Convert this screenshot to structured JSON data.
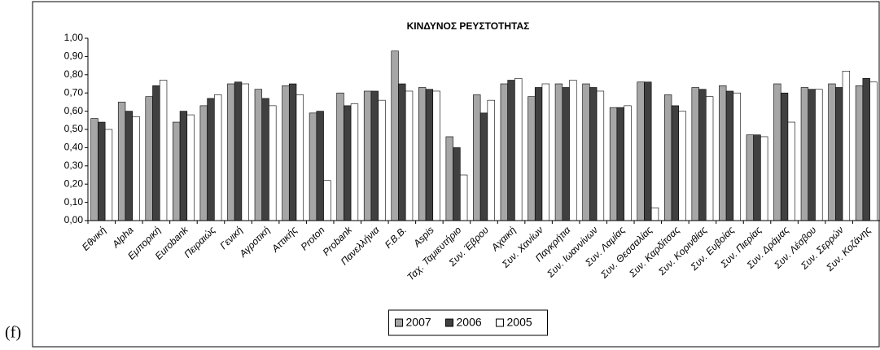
{
  "panel_label": "(f)",
  "chart_data": {
    "type": "bar",
    "title": "ΚΙΝΔΥΝΟΣ ΡΕΥΣΤΟΤΗΤΑΣ",
    "categories": [
      "Εθνική",
      "Alpha",
      "Εμπορική",
      "Eurobank",
      "Πειραιώς",
      "Γενική",
      "Αγροτική",
      "Αττικής",
      "Proton",
      "Probank",
      "Πανελλήνια",
      "F.B.B.",
      "Aspis",
      "Ταχ. Ταμιευτήριο",
      "Συν. Έβρου",
      "Αχαική",
      "Συν. Χανίων",
      "Παγκρήτια",
      "Συν. Ιωαννίνων",
      "Συν. Λαμίας",
      "Συν. Θεσσαλίας",
      "Συν. Καρδίτσας",
      "Συν. Κορινθίας",
      "Συν. Ευβοίας",
      "Συν. Πιερίας",
      "Συν. Δράμας",
      "Συν. Λέσβου",
      "Συν. Σερρών",
      "Συν. Κοζάνης"
    ],
    "series": [
      {
        "name": "2007",
        "color": "#a6a6a6",
        "values": [
          0.56,
          0.65,
          0.68,
          0.54,
          0.63,
          0.75,
          0.72,
          0.74,
          0.59,
          0.7,
          0.71,
          0.93,
          0.73,
          0.46,
          0.69,
          0.75,
          0.68,
          0.75,
          0.75,
          0.62,
          0.76,
          0.69,
          0.73,
          0.74,
          0.47,
          0.75,
          0.73,
          0.75,
          0.74
        ]
      },
      {
        "name": "2006",
        "color": "#404040",
        "values": [
          0.54,
          0.6,
          0.74,
          0.6,
          0.67,
          0.76,
          0.67,
          0.75,
          0.6,
          0.63,
          0.71,
          0.75,
          0.72,
          0.4,
          0.59,
          0.77,
          0.73,
          0.73,
          0.73,
          0.62,
          0.76,
          0.63,
          0.72,
          0.71,
          0.47,
          0.7,
          0.72,
          0.73,
          0.78
        ]
      },
      {
        "name": "2005",
        "color": "#ffffff",
        "values": [
          0.5,
          0.57,
          0.77,
          0.58,
          0.69,
          0.75,
          0.63,
          0.69,
          0.22,
          0.64,
          0.66,
          0.71,
          0.71,
          0.25,
          0.66,
          0.78,
          0.75,
          0.77,
          0.71,
          0.63,
          0.07,
          0.6,
          0.68,
          0.7,
          0.46,
          0.54,
          0.72,
          0.82,
          0.76
        ]
      }
    ],
    "ylim": [
      0,
      1
    ],
    "yticks": [
      {
        "value": 0,
        "label": "0,00"
      },
      {
        "value": 0.1,
        "label": "0,10"
      },
      {
        "value": 0.2,
        "label": "0,20"
      },
      {
        "value": 0.3,
        "label": "0,30"
      },
      {
        "value": 0.4,
        "label": "0,40"
      },
      {
        "value": 0.5,
        "label": "0,50"
      },
      {
        "value": 0.6,
        "label": "0,60"
      },
      {
        "value": 0.7,
        "label": "0,70"
      },
      {
        "value": 0.8,
        "label": "0,80"
      },
      {
        "value": 0.9,
        "label": "0,90"
      },
      {
        "value": 1,
        "label": "1,00"
      }
    ],
    "grid": false,
    "legend": "bottom"
  }
}
